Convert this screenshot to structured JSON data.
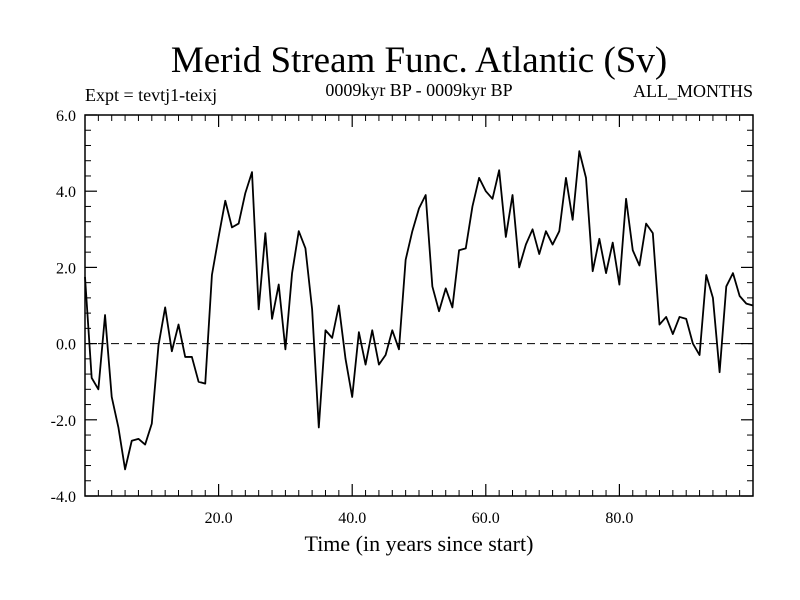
{
  "chart_data": {
    "type": "line",
    "title": "Merid Stream Func. Atlantic (Sv)",
    "subtitle_left": "Expt = tevtj1-teixj",
    "subtitle_center": "0009kyr BP - 0009kyr BP",
    "subtitle_right": "ALL_MONTHS",
    "xlabel": "Time (in years since start)",
    "ylabel": "",
    "xlim": [
      0,
      100
    ],
    "ylim": [
      -4.0,
      6.0
    ],
    "xticks": [
      20,
      40,
      60,
      80
    ],
    "xtick_labels": [
      "20.0",
      "40.0",
      "60.0",
      "80.0"
    ],
    "yticks": [
      -4,
      -2,
      0,
      2,
      4,
      6
    ],
    "ytick_labels": [
      "-4.0",
      "-2.0",
      "0.0",
      "2.0",
      "4.0",
      "6.0"
    ],
    "zero_line": "dashed",
    "series": [
      {
        "name": "Merid Stream Func.",
        "x": [
          0,
          1,
          2,
          3,
          4,
          5,
          6,
          7,
          8,
          9,
          10,
          11,
          12,
          13,
          14,
          15,
          16,
          17,
          18,
          19,
          20,
          21,
          22,
          23,
          24,
          25,
          26,
          27,
          28,
          29,
          30,
          31,
          32,
          33,
          34,
          35,
          36,
          37,
          38,
          39,
          40,
          41,
          42,
          43,
          44,
          45,
          46,
          47,
          48,
          49,
          50,
          51,
          52,
          53,
          54,
          55,
          56,
          57,
          58,
          59,
          60,
          61,
          62,
          63,
          64,
          65,
          66,
          67,
          68,
          69,
          70,
          71,
          72,
          73,
          74,
          75,
          76,
          77,
          78,
          79,
          80,
          81,
          82,
          83,
          84,
          85,
          86,
          87,
          88,
          89,
          90,
          91,
          92,
          93,
          94,
          95,
          96,
          97,
          98,
          99,
          100
        ],
        "values": [
          1.75,
          -0.9,
          -1.2,
          0.75,
          -1.4,
          -2.2,
          -3.3,
          -2.55,
          -2.5,
          -2.65,
          -2.1,
          -0.05,
          0.95,
          -0.2,
          0.5,
          -0.35,
          -0.35,
          -1.0,
          -1.05,
          1.8,
          2.8,
          3.75,
          3.05,
          3.15,
          3.95,
          4.5,
          0.9,
          2.9,
          0.65,
          1.55,
          -0.15,
          1.85,
          2.95,
          2.5,
          0.9,
          -2.2,
          0.35,
          0.15,
          1.0,
          -0.4,
          -1.4,
          0.3,
          -0.55,
          0.35,
          -0.55,
          -0.3,
          0.35,
          -0.15,
          2.2,
          2.95,
          3.55,
          3.9,
          1.5,
          0.85,
          1.45,
          0.95,
          2.45,
          2.5,
          3.6,
          4.35,
          4.0,
          3.8,
          4.55,
          2.8,
          3.9,
          2.0,
          2.6,
          3.0,
          2.35,
          2.95,
          2.6,
          2.95,
          4.35,
          3.25,
          5.05,
          4.35,
          1.9,
          2.75,
          1.85,
          2.65,
          1.55,
          3.8,
          2.45,
          2.05,
          3.15,
          2.9,
          0.5,
          0.7,
          0.25,
          0.7,
          0.65,
          0.0,
          -0.3,
          1.8,
          1.2,
          -0.75,
          1.5,
          1.85,
          1.25,
          1.05,
          1.0
        ]
      }
    ]
  }
}
